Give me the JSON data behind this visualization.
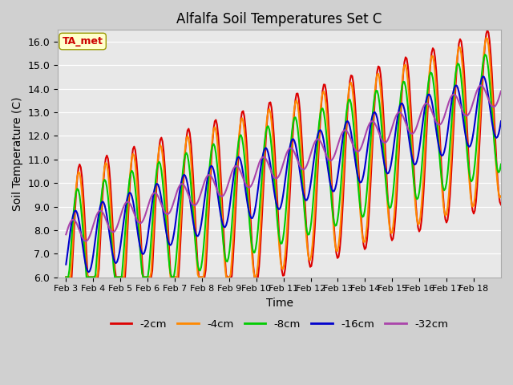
{
  "title": "Alfalfa Soil Temperatures Set C",
  "xlabel": "Time",
  "ylabel": "Soil Temperature (C)",
  "ylim": [
    6.0,
    16.5
  ],
  "yticks": [
    6.0,
    7.0,
    8.0,
    9.0,
    10.0,
    11.0,
    12.0,
    13.0,
    14.0,
    15.0,
    16.0
  ],
  "xtick_labels": [
    "Feb 3",
    "Feb 4",
    "Feb 5",
    "Feb 6",
    "Feb 7",
    "Feb 8",
    "Feb 9",
    "Feb 10",
    "Feb 11",
    "Feb 12",
    "Feb 13",
    "Feb 14",
    "Feb 15",
    "Feb 16",
    "Feb 17",
    "Feb 18"
  ],
  "fig_bg_color": "#d0d0d0",
  "plot_bg_color": "#e8e8e8",
  "series_colors": [
    "#dd0000",
    "#ff8800",
    "#00cc00",
    "#0000cc",
    "#aa44aa"
  ],
  "series_names": [
    "-2cm",
    "-4cm",
    "-8cm",
    "-16cm",
    "-32cm"
  ],
  "series_lw": [
    1.5,
    1.5,
    1.5,
    1.5,
    1.5
  ],
  "annotation_text": "TA_met",
  "annotation_color": "#cc0000",
  "annotation_bg": "#ffffcc",
  "annotation_edge": "#999900"
}
